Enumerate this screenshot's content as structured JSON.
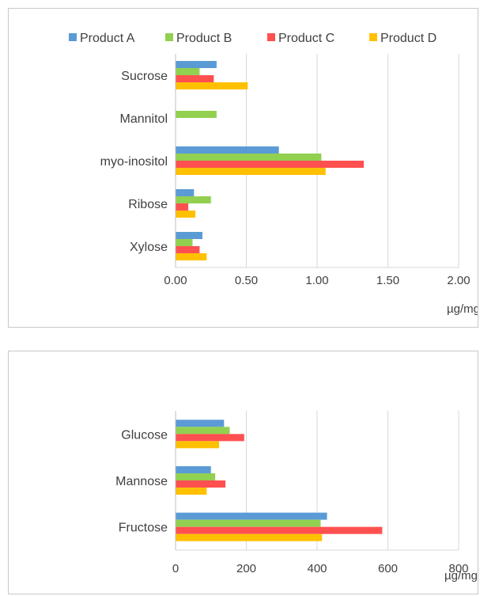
{
  "colors": {
    "Product A": "#5b9bd5",
    "Product B": "#92d050",
    "Product C": "#ff5050",
    "Product D": "#ffc000"
  },
  "chart_data": [
    {
      "type": "bar",
      "orientation": "horizontal",
      "categories": [
        "Sucrose",
        "Mannitol",
        "myo-inositol",
        "Ribose",
        "Xylose"
      ],
      "series": [
        {
          "name": "Product A",
          "values": [
            0.29,
            0.0,
            0.73,
            0.13,
            0.19
          ]
        },
        {
          "name": "Product B",
          "values": [
            0.17,
            0.29,
            1.03,
            0.25,
            0.12
          ]
        },
        {
          "name": "Product C",
          "values": [
            0.27,
            0.0,
            1.33,
            0.09,
            0.17
          ]
        },
        {
          "name": "Product D",
          "values": [
            0.51,
            0.0,
            1.06,
            0.14,
            0.22
          ]
        }
      ],
      "xlim": [
        0,
        2.0
      ],
      "ticks": [
        "0.00",
        "0.50",
        "1.00",
        "1.50",
        "2.00"
      ],
      "xlabel": "µg/mg",
      "legend": "top",
      "grid": true
    },
    {
      "type": "bar",
      "orientation": "horizontal",
      "categories": [
        "Glucose",
        "Mannose",
        "Fructose"
      ],
      "series": [
        {
          "name": "Product A",
          "values": [
            137,
            100,
            428
          ]
        },
        {
          "name": "Product B",
          "values": [
            153,
            112,
            410
          ]
        },
        {
          "name": "Product C",
          "values": [
            194,
            141,
            584
          ]
        },
        {
          "name": "Product D",
          "values": [
            123,
            88,
            414
          ]
        }
      ],
      "xlim": [
        0,
        800
      ],
      "ticks": [
        "0",
        "200",
        "400",
        "600",
        "800"
      ],
      "xlabel": "µg/mg",
      "grid": true
    }
  ]
}
